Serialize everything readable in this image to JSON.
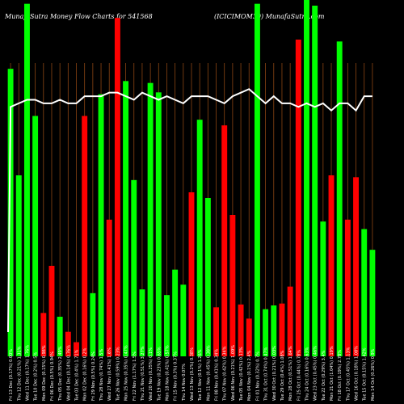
{
  "header": {
    "left": "MunafaSutra Money Flow Charts for 541568",
    "right": "(ICICIMOM30) MunafaSutra.com"
  },
  "colors": {
    "background": "#000000",
    "up_bar": "#00ff00",
    "down_bar": "#ff0000",
    "gridline": "#8B4513",
    "price_line": "#ffffff"
  },
  "chart_data": {
    "type": "bar",
    "title": "MunafaSutra Money Flow Charts for 541568",
    "categories": [
      "Fri 13 Dec",
      "Thu 12 Dec",
      "Wed 11 Dec",
      "Tue 10 Dec",
      "Mon 09 Dec",
      "Fri 06 Dec",
      "Thu 05 Dec",
      "Wed 04 Dec",
      "Tue 03 Dec",
      "Mon 02 Dec",
      "Fri 29 Nov",
      "Thu 28 Nov",
      "Wed 27 Nov",
      "Tue 26 Nov",
      "Mon 25 Nov",
      "Fri 22 Nov",
      "Thu 21 Nov",
      "Wed 20 Nov",
      "Tue 19 Nov",
      "Mon 18 Nov",
      "Fri 15 Nov",
      "Thu 14 Nov",
      "Wed 13 Nov",
      "Tue 12 Nov",
      "Mon 11 Nov",
      "Fri 08 Nov",
      "Thu 07 Nov",
      "Wed 06 Nov",
      "Tue 05 Nov",
      "Mon 04 Nov",
      "Fri 01 Nov",
      "Thu 31 Oct",
      "Wed 30 Oct",
      "Tue 29 Oct",
      "Mon 28 Oct",
      "Fri 25 Oct",
      "Thu 24 Oct",
      "Wed 23 Oct",
      "Tue 22 Oct",
      "Mon 21 Oct",
      "Fri 18 Oct",
      "Thu 17 Oct",
      "Wed 16 Oct",
      "Tue 15 Oct",
      "Mon 14 Oct"
    ],
    "tick_labels": [
      "(0.17%) 0.00%",
      "(0.21%) 1.31%",
      "(0.17%) 1.76%",
      "(0.2%) 0.5%",
      "(0.15%) 0.98%",
      "(0.5%) 0.94%",
      "(0.35%) 2.49%",
      "(0.14%) 0.76%",
      "(0.4%) 1.71%",
      "(0.16%) 0.2%",
      "(0.5%) 0.24%",
      "(0.74%) 1.5%",
      "(0.41%) 1.6%",
      "(0.59%) 0.23%",
      "(0.35%) 0.47%",
      "(1.17%) 1.5%",
      "(0.51%) 3.27%",
      "(0.25%) 0.1%",
      "(0.23%) 0.65%",
      "(0.41%) 0.57%",
      "(0.3%) 0.37%",
      "0.07%",
      "(0.2%) 0.38%",
      "(0.1%) 1.26%",
      "(0.45%) 0.38%",
      "(0.41%) 0.34%",
      "(0.42%) 0.34%",
      "(0.21%) 1.09%",
      "(0.42%) 0.13%",
      "(0.1%) 2.4%",
      "(0.32%) 0.7%",
      "(0.74%) 0.47%",
      "(0.21%) 0.03%",
      "(0.4%) 1.08%",
      "(0.51%) 1.64%",
      "(0.44%) 0.78%",
      "(0.16%) 0.63%",
      "(0.45%) 0.46%",
      "(0.29%) 3.4%",
      "(1.04%) 0.19%",
      "(0.19%) 2.78%",
      "(0.45%) 1.13%",
      "(0.18%) 1.08%",
      "(0.15%) 1.42%",
      "(0.26%) 0.9%"
    ],
    "values": [
      305,
      192,
      374,
      255,
      46,
      96,
      42,
      26,
      15,
      255,
      67,
      278,
      145,
      359,
      292,
      187,
      71,
      290,
      280,
      65,
      92,
      76,
      174,
      251,
      168,
      52,
      245,
      150,
      55,
      40,
      374,
      50,
      54,
      56,
      74,
      336,
      378,
      372,
      143,
      192,
      334,
      145,
      190,
      135,
      113
    ],
    "direction": [
      "up",
      "up",
      "up",
      "up",
      "down",
      "down",
      "up",
      "down",
      "down",
      "down",
      "up",
      "up",
      "down",
      "down",
      "up",
      "up",
      "up",
      "up",
      "up",
      "up",
      "up",
      "up",
      "down",
      "up",
      "up",
      "down",
      "down",
      "down",
      "down",
      "down",
      "up",
      "up",
      "up",
      "down",
      "down",
      "down",
      "up",
      "up",
      "up",
      "down",
      "up",
      "down",
      "down",
      "up",
      "up"
    ],
    "price_index": [
      70,
      71,
      72,
      72,
      71,
      71,
      72,
      71,
      71,
      73,
      73,
      73,
      74,
      74,
      73,
      72,
      74,
      73,
      72,
      73,
      72,
      71,
      73,
      73,
      73,
      72,
      71,
      73,
      74,
      75,
      73,
      71,
      73,
      71,
      71,
      70,
      71,
      70,
      71,
      69,
      71,
      71,
      69,
      73,
      73
    ],
    "ylim": [
      0,
      378
    ],
    "price_ylim": [
      0,
      100
    ],
    "grid": true,
    "legend": "none"
  }
}
